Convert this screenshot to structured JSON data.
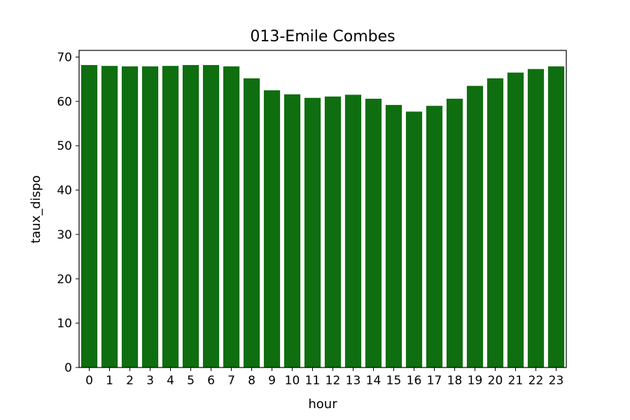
{
  "chart_data": {
    "type": "bar",
    "title": "013-Emile Combes",
    "xlabel": "hour",
    "ylabel": "taux_dispo",
    "categories": [
      "0",
      "1",
      "2",
      "3",
      "4",
      "5",
      "6",
      "7",
      "8",
      "9",
      "10",
      "11",
      "12",
      "13",
      "14",
      "15",
      "16",
      "17",
      "18",
      "19",
      "20",
      "21",
      "22",
      "23"
    ],
    "values": [
      68.2,
      68.0,
      67.9,
      67.9,
      68.0,
      68.2,
      68.2,
      67.9,
      65.2,
      62.5,
      61.6,
      60.8,
      61.1,
      61.5,
      60.6,
      59.2,
      57.7,
      59.0,
      60.6,
      63.5,
      65.2,
      66.5,
      67.3,
      67.9
    ],
    "ylim": [
      0,
      71.5
    ],
    "yticks": [
      0,
      10,
      20,
      30,
      40,
      50,
      60,
      70
    ],
    "bar_color": "#0f6e0f",
    "grid": false,
    "legend": false
  }
}
